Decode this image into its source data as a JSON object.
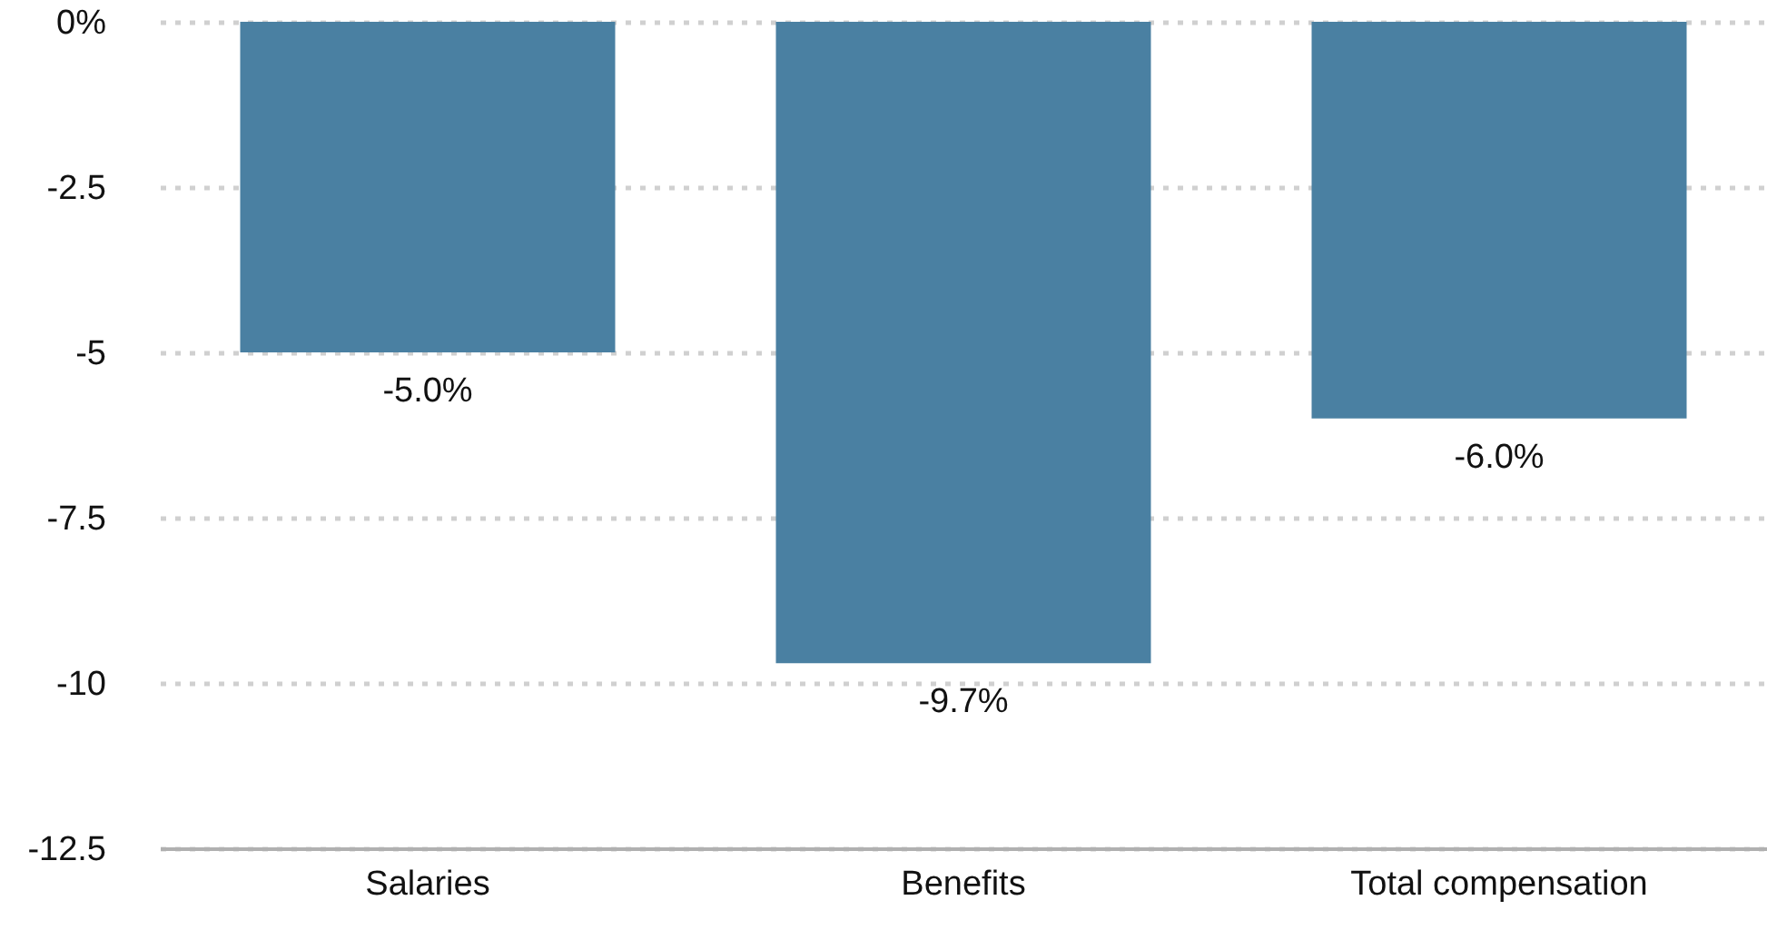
{
  "chart_data": {
    "type": "bar",
    "categories": [
      "Salaries",
      "Benefits",
      "Total compensation"
    ],
    "values": [
      -5.0,
      -9.7,
      -6.0
    ],
    "value_labels": [
      "-5.0%",
      "-9.7%",
      "-6.0%"
    ],
    "color": "#4a80a2",
    "ylim": [
      -12.5,
      0
    ],
    "yticks": [
      {
        "value": 0,
        "label": "0%"
      },
      -2.5,
      -5,
      -7.5,
      -10,
      -12.5
    ],
    "grid": "y"
  }
}
